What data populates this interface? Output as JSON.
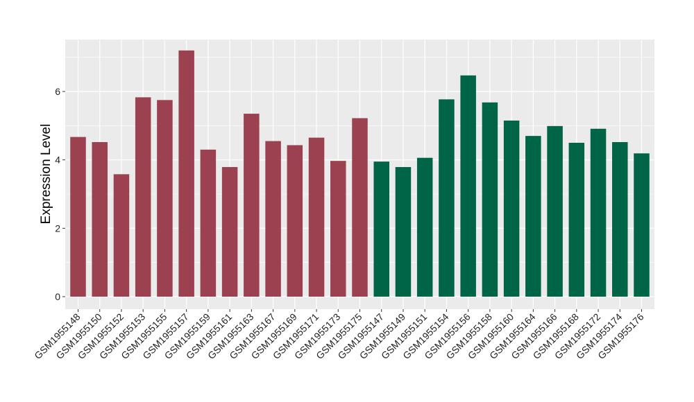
{
  "chart_data": {
    "type": "bar",
    "title": "",
    "xlabel": "",
    "ylabel": "Expression Level",
    "ylim": [
      0,
      7
    ],
    "yticks": [
      0,
      2,
      4,
      6
    ],
    "grid": true,
    "legend": "none",
    "colors": {
      "group1": "#9b4150",
      "group2": "#006446",
      "panel": "#ebebeb",
      "grid": "#ffffff"
    },
    "categories": [
      "GSM1955148",
      "GSM1955150",
      "GSM1955152",
      "GSM1955153",
      "GSM1955155",
      "GSM1955157",
      "GSM1955159",
      "GSM1955161",
      "GSM1955163",
      "GSM1955167",
      "GSM1955169",
      "GSM1955171",
      "GSM1955173",
      "GSM1955175",
      "GSM1955147",
      "GSM1955149",
      "GSM1955151",
      "GSM1955154",
      "GSM1955156",
      "GSM1955158",
      "GSM1955160",
      "GSM1955164",
      "GSM1955166",
      "GSM1955168",
      "GSM1955172",
      "GSM1955174",
      "GSM1955176"
    ],
    "values": [
      4.67,
      4.52,
      3.58,
      5.83,
      5.75,
      7.2,
      4.3,
      3.79,
      5.35,
      4.55,
      4.43,
      4.65,
      3.97,
      5.22,
      3.95,
      3.79,
      4.06,
      5.77,
      6.47,
      5.68,
      5.15,
      4.7,
      4.99,
      4.5,
      4.91,
      4.52,
      4.19
    ],
    "groups": [
      "group1",
      "group1",
      "group1",
      "group1",
      "group1",
      "group1",
      "group1",
      "group1",
      "group1",
      "group1",
      "group1",
      "group1",
      "group1",
      "group1",
      "group2",
      "group2",
      "group2",
      "group2",
      "group2",
      "group2",
      "group2",
      "group2",
      "group2",
      "group2",
      "group2",
      "group2",
      "group2"
    ]
  }
}
